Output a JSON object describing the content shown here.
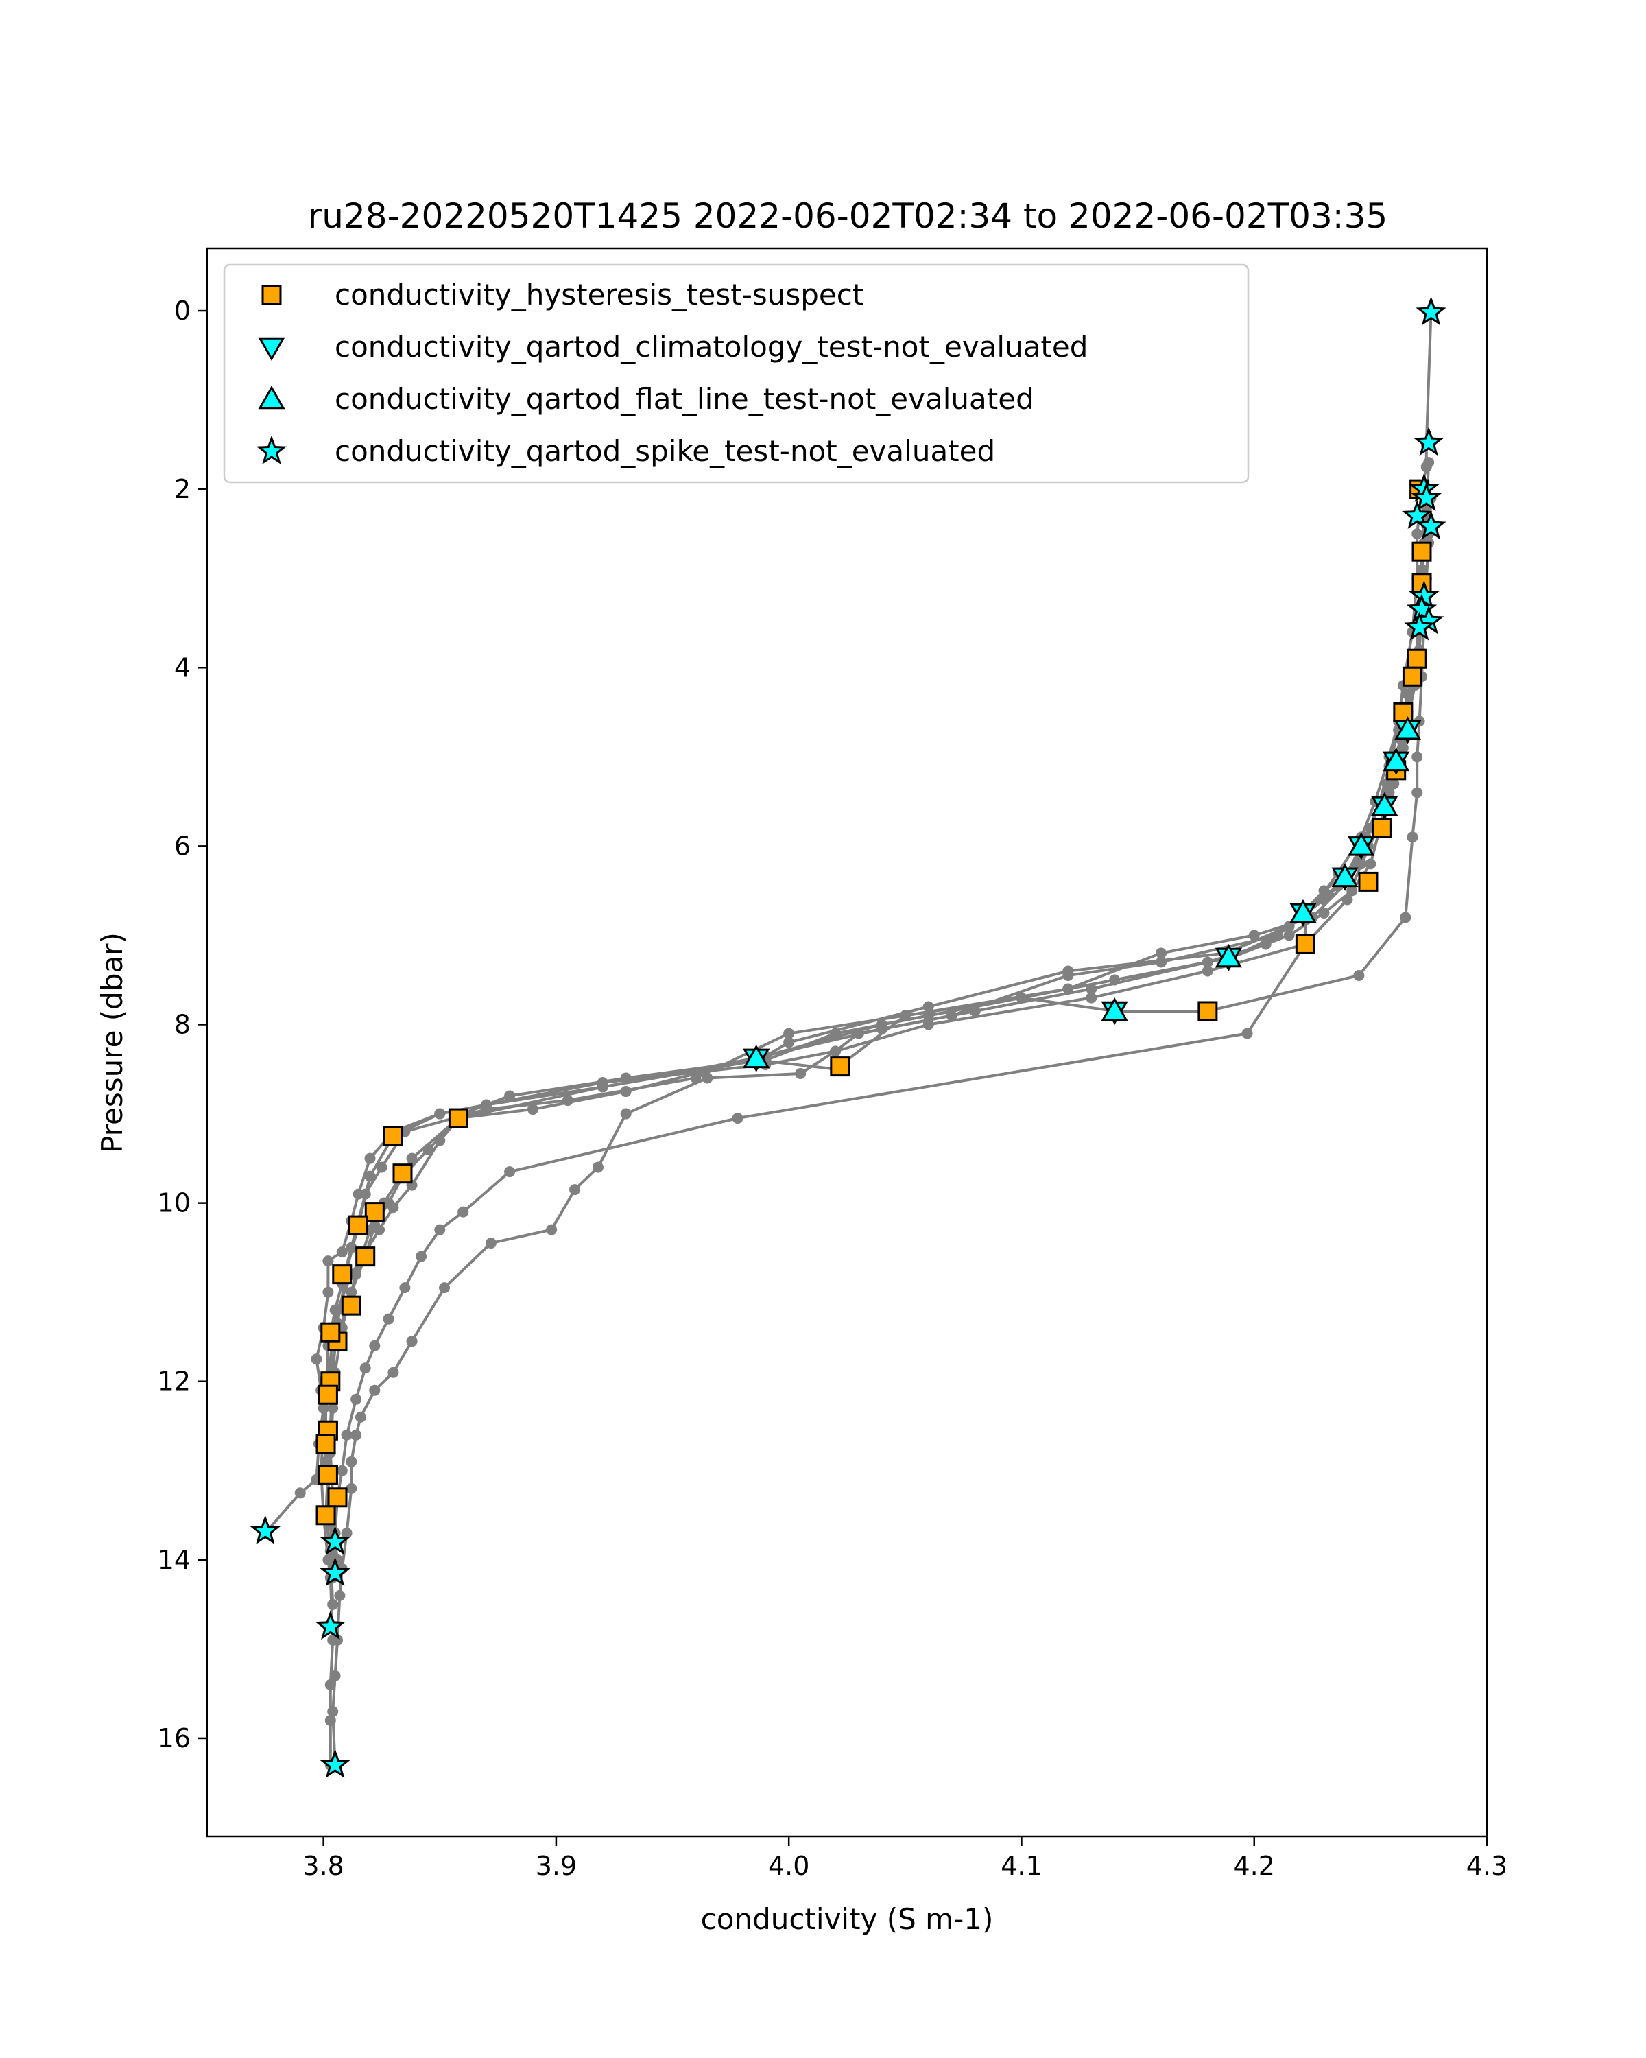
{
  "chart_data": {
    "type": "scatter",
    "title": "ru28-20220520T1425 2022-06-02T02:34 to 2022-06-02T03:35",
    "xlabel": "conductivity (S m-1)",
    "ylabel": "Pressure (dbar)",
    "xlim": [
      3.75,
      4.3
    ],
    "ylim": [
      17.1,
      -0.7
    ],
    "y_inverted": true,
    "grid": false,
    "legend_position": "top-left",
    "x_ticks": [
      3.8,
      3.9,
      4.0,
      4.1,
      4.2,
      4.3
    ],
    "x_tick_labels": [
      "3.8",
      "3.9",
      "4.0",
      "4.1",
      "4.2",
      "4.3"
    ],
    "y_ticks": [
      0,
      2,
      4,
      6,
      8,
      10,
      12,
      14,
      16
    ],
    "y_tick_labels": [
      "0",
      "2",
      "4",
      "6",
      "8",
      "10",
      "12",
      "14",
      "16"
    ],
    "colors": {
      "profile_line": "#808080",
      "hysteresis_suspect": "#ffa500",
      "qartod_not_evaluated": "#00ffff",
      "marker_edge": "#000000"
    },
    "profiles": [
      [
        [
          4.276,
          0.0
        ],
        [
          4.274,
          1.5
        ],
        [
          4.274,
          1.75
        ],
        [
          4.272,
          2.0
        ],
        [
          4.274,
          2.4
        ],
        [
          4.272,
          2.7
        ],
        [
          4.272,
          3.1
        ],
        [
          4.274,
          3.2
        ],
        [
          4.272,
          3.4
        ],
        [
          4.27,
          3.9
        ],
        [
          4.268,
          4.1
        ],
        [
          4.266,
          4.5
        ],
        [
          4.264,
          4.9
        ],
        [
          4.261,
          5.2
        ],
        [
          4.257,
          5.6
        ],
        [
          4.255,
          5.8
        ],
        [
          4.248,
          6.0
        ],
        [
          4.24,
          6.4
        ],
        [
          4.225,
          6.8
        ],
        [
          4.2,
          7.0
        ],
        [
          4.16,
          7.2
        ],
        [
          4.12,
          7.6
        ],
        [
          4.05,
          7.9
        ],
        [
          4.02,
          8.5
        ],
        [
          3.987,
          8.4
        ],
        [
          3.92,
          8.7
        ],
        [
          3.858,
          9.05
        ],
        [
          3.838,
          9.5
        ],
        [
          3.826,
          10.0
        ],
        [
          3.82,
          10.3
        ],
        [
          3.814,
          10.8
        ],
        [
          3.808,
          11.4
        ],
        [
          3.805,
          11.9
        ],
        [
          3.804,
          12.3
        ],
        [
          3.803,
          12.8
        ],
        [
          3.804,
          13.3
        ],
        [
          3.805,
          13.8
        ]
      ],
      [
        [
          4.274,
          2.0
        ],
        [
          4.273,
          2.3
        ],
        [
          4.272,
          2.9
        ],
        [
          4.27,
          3.5
        ],
        [
          4.27,
          3.9
        ],
        [
          4.266,
          4.3
        ],
        [
          4.262,
          4.7
        ],
        [
          4.258,
          5.1
        ],
        [
          4.254,
          5.5
        ],
        [
          4.248,
          5.9
        ],
        [
          4.24,
          6.3
        ],
        [
          4.23,
          6.6
        ],
        [
          4.21,
          7.0
        ],
        [
          4.19,
          7.25
        ],
        [
          4.1,
          7.7
        ],
        [
          4.0,
          8.1
        ],
        [
          3.96,
          8.6
        ],
        [
          3.905,
          8.85
        ],
        [
          3.87,
          8.95
        ],
        [
          3.835,
          9.2
        ],
        [
          3.825,
          9.6
        ],
        [
          3.818,
          9.9
        ],
        [
          3.812,
          10.5
        ],
        [
          3.808,
          10.9
        ],
        [
          3.805,
          11.2
        ],
        [
          3.802,
          11.6
        ],
        [
          3.801,
          12.2
        ],
        [
          3.801,
          12.7
        ],
        [
          3.802,
          13.1
        ],
        [
          3.803,
          13.6
        ],
        [
          3.804,
          14.2
        ]
      ],
      [
        [
          4.276,
          2.1
        ],
        [
          4.275,
          2.6
        ],
        [
          4.274,
          3.0
        ],
        [
          4.272,
          3.4
        ],
        [
          4.271,
          3.8
        ],
        [
          4.269,
          4.2
        ],
        [
          4.266,
          4.6
        ],
        [
          4.262,
          5.0
        ],
        [
          4.258,
          5.4
        ],
        [
          4.254,
          5.8
        ],
        [
          4.246,
          6.1
        ],
        [
          4.236,
          6.45
        ],
        [
          4.222,
          6.75
        ],
        [
          4.205,
          7.1
        ],
        [
          4.18,
          7.3
        ],
        [
          4.13,
          7.6
        ],
        [
          4.08,
          7.85
        ],
        [
          4.04,
          8.05
        ],
        [
          3.985,
          8.38
        ],
        [
          3.92,
          8.7
        ],
        [
          3.87,
          8.9
        ],
        [
          3.85,
          9.0
        ],
        [
          3.83,
          9.25
        ],
        [
          3.82,
          9.7
        ],
        [
          3.815,
          10.25
        ],
        [
          3.81,
          10.75
        ],
        [
          3.806,
          11.35
        ],
        [
          3.804,
          11.9
        ],
        [
          3.803,
          12.5
        ],
        [
          3.802,
          13.0
        ],
        [
          3.801,
          13.5
        ],
        [
          3.803,
          13.9
        ],
        [
          3.804,
          14.5
        ],
        [
          3.802,
          14.75
        ]
      ],
      [
        [
          4.275,
          1.7
        ],
        [
          4.274,
          2.2
        ],
        [
          4.273,
          2.6
        ],
        [
          4.272,
          3.0
        ],
        [
          4.271,
          3.5
        ],
        [
          4.269,
          4.0
        ],
        [
          4.266,
          4.6
        ],
        [
          4.261,
          5.1
        ],
        [
          4.256,
          5.6
        ],
        [
          4.25,
          6.2
        ],
        [
          4.242,
          6.5
        ],
        [
          4.23,
          6.75
        ],
        [
          4.215,
          7.0
        ],
        [
          4.19,
          7.25
        ],
        [
          4.14,
          7.5
        ],
        [
          4.1,
          7.7
        ],
        [
          4.04,
          8.0
        ],
        [
          3.99,
          8.35
        ],
        [
          3.96,
          8.55
        ],
        [
          3.93,
          8.75
        ],
        [
          3.89,
          8.95
        ],
        [
          3.858,
          9.05
        ],
        [
          3.845,
          9.4
        ],
        [
          3.834,
          9.7
        ],
        [
          3.828,
          10.0
        ],
        [
          3.822,
          10.25
        ],
        [
          3.818,
          10.6
        ],
        [
          3.812,
          11.0
        ],
        [
          3.806,
          11.5
        ],
        [
          3.802,
          12.0
        ],
        [
          3.8,
          12.5
        ],
        [
          3.799,
          13.0
        ],
        [
          3.8,
          13.5
        ],
        [
          3.802,
          14.0
        ],
        [
          3.803,
          14.2
        ],
        [
          3.804,
          14.9
        ],
        [
          3.803,
          15.4
        ],
        [
          3.803,
          15.8
        ],
        [
          3.803,
          16.3
        ]
      ],
      [
        [
          4.272,
          2.0
        ],
        [
          4.27,
          2.5
        ],
        [
          4.27,
          3.0
        ],
        [
          4.268,
          3.6
        ],
        [
          4.264,
          4.2
        ],
        [
          4.262,
          4.6
        ],
        [
          4.258,
          5.0
        ],
        [
          4.252,
          5.5
        ],
        [
          4.246,
          5.9
        ],
        [
          4.236,
          6.3
        ],
        [
          4.222,
          6.8
        ],
        [
          4.222,
          7.1
        ],
        [
          4.18,
          7.4
        ],
        [
          4.13,
          7.7
        ],
        [
          4.06,
          8.0
        ],
        [
          4.02,
          8.3
        ],
        [
          4.005,
          8.55
        ],
        [
          3.965,
          8.6
        ],
        [
          3.93,
          9.0
        ],
        [
          3.918,
          9.6
        ],
        [
          3.908,
          9.85
        ],
        [
          3.898,
          10.3
        ],
        [
          3.872,
          10.45
        ],
        [
          3.852,
          10.95
        ],
        [
          3.838,
          11.55
        ],
        [
          3.83,
          11.9
        ],
        [
          3.822,
          12.1
        ],
        [
          3.816,
          12.4
        ],
        [
          3.814,
          12.6
        ],
        [
          3.812,
          12.9
        ],
        [
          3.812,
          13.2
        ],
        [
          3.81,
          13.7
        ],
        [
          3.808,
          14.1
        ],
        [
          3.807,
          14.4
        ],
        [
          3.806,
          14.9
        ],
        [
          3.805,
          15.3
        ],
        [
          3.804,
          15.7
        ],
        [
          3.805,
          16.3
        ]
      ],
      [
        [
          4.275,
          2.5
        ],
        [
          4.274,
          3.0
        ],
        [
          4.273,
          3.5
        ],
        [
          4.272,
          4.1
        ],
        [
          4.271,
          4.6
        ],
        [
          4.27,
          5.0
        ],
        [
          4.27,
          5.4
        ],
        [
          4.268,
          5.9
        ],
        [
          4.265,
          6.8
        ],
        [
          4.245,
          7.45
        ],
        [
          4.18,
          7.85
        ],
        [
          4.14,
          7.85
        ],
        [
          4.1,
          7.7
        ],
        [
          4.06,
          7.9
        ],
        [
          4.02,
          8.1
        ],
        [
          3.99,
          8.4
        ]
      ],
      [
        [
          4.266,
          4.3
        ],
        [
          4.263,
          4.8
        ],
        [
          4.257,
          5.3
        ],
        [
          4.25,
          5.8
        ],
        [
          4.244,
          6.2
        ],
        [
          4.23,
          6.5
        ],
        [
          4.215,
          6.9
        ],
        [
          4.188,
          7.2
        ],
        [
          4.12,
          7.4
        ],
        [
          4.06,
          7.8
        ],
        [
          4.0,
          8.2
        ],
        [
          3.987,
          8.4
        ],
        [
          3.93,
          8.6
        ],
        [
          3.88,
          8.8
        ],
        [
          3.86,
          9.0
        ],
        [
          3.85,
          9.3
        ],
        [
          3.838,
          9.8
        ],
        [
          3.83,
          10.05
        ],
        [
          3.824,
          10.3
        ],
        [
          3.818,
          10.55
        ],
        [
          3.812,
          10.8
        ],
        [
          3.806,
          11.2
        ],
        [
          3.804,
          11.5
        ],
        [
          3.802,
          12.0
        ],
        [
          3.8,
          12.3
        ],
        [
          3.798,
          12.7
        ],
        [
          3.797,
          13.1
        ],
        [
          3.79,
          13.25
        ],
        [
          3.775,
          13.7
        ]
      ],
      [
        [
          4.249,
          6.0
        ],
        [
          4.24,
          6.6
        ],
        [
          4.222,
          7.1
        ],
        [
          4.197,
          8.1
        ],
        [
          3.978,
          9.05
        ],
        [
          3.88,
          9.65
        ],
        [
          3.86,
          10.1
        ],
        [
          3.85,
          10.3
        ],
        [
          3.842,
          10.6
        ],
        [
          3.835,
          10.95
        ],
        [
          3.828,
          11.3
        ],
        [
          3.822,
          11.6
        ],
        [
          3.818,
          11.85
        ],
        [
          3.814,
          12.2
        ],
        [
          3.81,
          12.6
        ],
        [
          3.808,
          13.0
        ],
        [
          3.806,
          13.3
        ],
        [
          3.805,
          13.7
        ],
        [
          3.805,
          14.0
        ],
        [
          3.804,
          14.15
        ]
      ],
      [
        [
          4.264,
          4.8
        ],
        [
          4.26,
          5.3
        ],
        [
          4.254,
          5.75
        ],
        [
          4.246,
          6.2
        ],
        [
          4.232,
          6.55
        ],
        [
          4.21,
          7.0
        ],
        [
          4.16,
          7.3
        ],
        [
          4.12,
          7.45
        ],
        [
          4.07,
          7.9
        ],
        [
          4.03,
          8.1
        ],
        [
          4.02,
          8.3
        ],
        [
          3.99,
          8.45
        ],
        [
          3.92,
          8.65
        ],
        [
          3.85,
          9.0
        ],
        [
          3.83,
          9.2
        ],
        [
          3.82,
          9.5
        ],
        [
          3.815,
          9.9
        ],
        [
          3.812,
          10.2
        ],
        [
          3.808,
          10.55
        ],
        [
          3.802,
          10.65
        ],
        [
          3.802,
          11.0
        ],
        [
          3.8,
          11.4
        ],
        [
          3.797,
          11.75
        ],
        [
          3.799,
          12.1
        ],
        [
          3.8,
          12.5
        ],
        [
          3.801,
          12.9
        ],
        [
          3.803,
          13.4
        ],
        [
          3.806,
          14.0
        ]
      ]
    ],
    "series": [
      {
        "name": "conductivity_hysteresis_test-suspect",
        "marker": "square",
        "color": "#ffa500",
        "points": [
          [
            4.271,
            2.0
          ],
          [
            4.272,
            2.7
          ],
          [
            4.272,
            3.05
          ],
          [
            4.27,
            3.9
          ],
          [
            4.268,
            4.1
          ],
          [
            4.264,
            4.5
          ],
          [
            4.261,
            5.15
          ],
          [
            4.255,
            5.8
          ],
          [
            4.249,
            6.4
          ],
          [
            4.222,
            7.1
          ],
          [
            4.18,
            7.85
          ],
          [
            4.022,
            8.47
          ],
          [
            3.858,
            9.05
          ],
          [
            3.83,
            9.25
          ],
          [
            3.834,
            9.67
          ],
          [
            3.822,
            10.1
          ],
          [
            3.815,
            10.25
          ],
          [
            3.818,
            10.6
          ],
          [
            3.808,
            10.8
          ],
          [
            3.812,
            11.15
          ],
          [
            3.806,
            11.55
          ],
          [
            3.803,
            11.45
          ],
          [
            3.803,
            12.0
          ],
          [
            3.802,
            12.15
          ],
          [
            3.802,
            12.55
          ],
          [
            3.801,
            12.7
          ],
          [
            3.802,
            13.05
          ],
          [
            3.806,
            13.3
          ],
          [
            3.801,
            13.5
          ]
        ]
      },
      {
        "name": "conductivity_qartod_climatology_test-not_evaluated",
        "marker": "triangle-down",
        "color": "#00ffff",
        "points": [
          [
            4.266,
            4.7
          ],
          [
            4.261,
            5.05
          ],
          [
            4.256,
            5.55
          ],
          [
            4.246,
            6.0
          ],
          [
            4.239,
            6.35
          ],
          [
            4.221,
            6.75
          ],
          [
            4.189,
            7.25
          ],
          [
            4.14,
            7.85
          ],
          [
            3.986,
            8.38
          ]
        ]
      },
      {
        "name": "conductivity_qartod_flat_line_test-not_evaluated",
        "marker": "triangle-up",
        "color": "#00ffff",
        "points": [
          [
            4.266,
            4.7
          ],
          [
            4.261,
            5.05
          ],
          [
            4.256,
            5.55
          ],
          [
            4.246,
            6.0
          ],
          [
            4.239,
            6.35
          ],
          [
            4.221,
            6.75
          ],
          [
            4.189,
            7.25
          ],
          [
            4.14,
            7.85
          ],
          [
            3.986,
            8.38
          ]
        ]
      },
      {
        "name": "conductivity_qartod_spike_test-not_evaluated",
        "marker": "star",
        "color": "#00ffff",
        "points": [
          [
            4.276,
            0.02
          ],
          [
            4.275,
            1.48
          ],
          [
            4.273,
            2.0
          ],
          [
            4.274,
            2.1
          ],
          [
            4.27,
            2.3
          ],
          [
            4.276,
            2.42
          ],
          [
            4.273,
            3.2
          ],
          [
            4.272,
            3.35
          ],
          [
            4.275,
            3.48
          ],
          [
            4.271,
            3.55
          ],
          [
            3.775,
            13.68
          ],
          [
            3.805,
            13.8
          ],
          [
            3.805,
            14.15
          ],
          [
            3.803,
            14.75
          ],
          [
            3.805,
            16.3
          ]
        ]
      }
    ]
  }
}
